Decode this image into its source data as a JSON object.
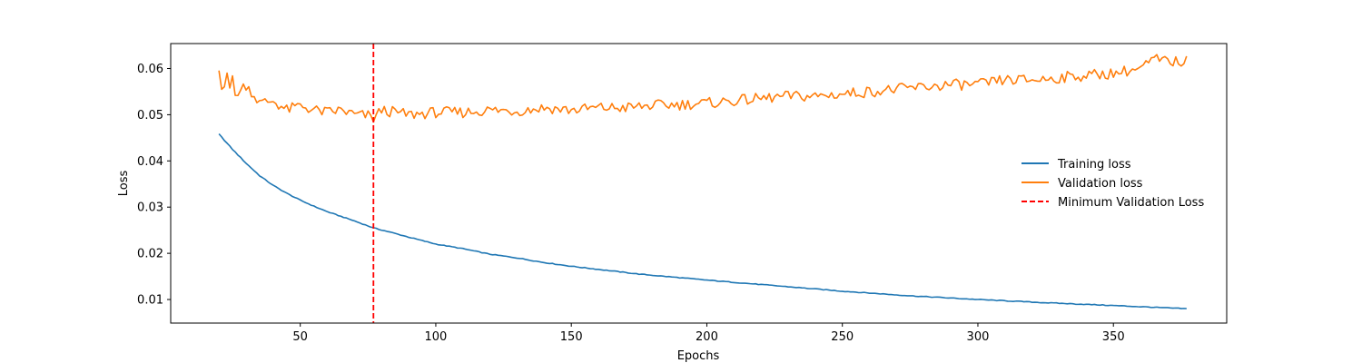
{
  "chart_data": {
    "type": "line",
    "title": "",
    "xlabel": "Epochs",
    "ylabel": "Loss",
    "xlim": [
      2.2,
      391.8
    ],
    "ylim": [
      0.0049,
      0.0654
    ],
    "xticks": [
      50,
      100,
      150,
      200,
      250,
      300,
      350
    ],
    "xtick_labels": [
      "50",
      "100",
      "150",
      "200",
      "250",
      "300",
      "350"
    ],
    "yticks": [
      0.01,
      0.02,
      0.03,
      0.04,
      0.05,
      0.06
    ],
    "ytick_labels": [
      "0.01",
      "0.02",
      "0.03",
      "0.04",
      "0.05",
      "0.06"
    ],
    "grid": false,
    "legend_position": "center-right",
    "series": [
      {
        "name": "Training loss",
        "color": "#1f77b4",
        "x_start": 20,
        "x_end": 377,
        "points": [
          [
            20,
            0.0458
          ],
          [
            25,
            0.0425
          ],
          [
            30,
            0.0395
          ],
          [
            35,
            0.0368
          ],
          [
            40,
            0.0347
          ],
          [
            45,
            0.033
          ],
          [
            50,
            0.0315
          ],
          [
            55,
            0.0302
          ],
          [
            60,
            0.029
          ],
          [
            65,
            0.028
          ],
          [
            70,
            0.027
          ],
          [
            77,
            0.0255
          ],
          [
            85,
            0.0243
          ],
          [
            90,
            0.0235
          ],
          [
            100,
            0.022
          ],
          [
            110,
            0.021
          ],
          [
            120,
            0.0198
          ],
          [
            130,
            0.019
          ],
          [
            140,
            0.018
          ],
          [
            150,
            0.0172
          ],
          [
            175,
            0.0155
          ],
          [
            200,
            0.0142
          ],
          [
            225,
            0.013
          ],
          [
            250,
            0.0118
          ],
          [
            275,
            0.0108
          ],
          [
            300,
            0.01
          ],
          [
            325,
            0.0093
          ],
          [
            350,
            0.0087
          ],
          [
            377,
            0.008
          ]
        ]
      },
      {
        "name": "Validation loss",
        "color": "#ff7f0e",
        "x_start": 20,
        "x_end": 377,
        "points": [
          [
            20,
            0.0595
          ],
          [
            21,
            0.0555
          ],
          [
            22,
            0.057
          ],
          [
            23,
            0.06
          ],
          [
            24,
            0.056
          ],
          [
            25,
            0.0575
          ],
          [
            26,
            0.054
          ],
          [
            27,
            0.055
          ],
          [
            28,
            0.0552
          ],
          [
            29,
            0.056
          ],
          [
            30,
            0.0565
          ],
          [
            32,
            0.055
          ],
          [
            35,
            0.0525
          ],
          [
            40,
            0.053
          ],
          [
            45,
            0.051
          ],
          [
            50,
            0.052
          ],
          [
            55,
            0.051
          ],
          [
            60,
            0.0505
          ],
          [
            65,
            0.051
          ],
          [
            70,
            0.05
          ],
          [
            75,
            0.0498
          ],
          [
            77,
            0.0492
          ],
          [
            80,
            0.051
          ],
          [
            85,
            0.0505
          ],
          [
            90,
            0.05
          ],
          [
            100,
            0.0505
          ],
          [
            110,
            0.0505
          ],
          [
            120,
            0.051
          ],
          [
            130,
            0.0508
          ],
          [
            140,
            0.0515
          ],
          [
            150,
            0.051
          ],
          [
            160,
            0.0515
          ],
          [
            170,
            0.0515
          ],
          [
            180,
            0.052
          ],
          [
            190,
            0.0522
          ],
          [
            200,
            0.0525
          ],
          [
            210,
            0.053
          ],
          [
            220,
            0.0535
          ],
          [
            230,
            0.054
          ],
          [
            240,
            0.054
          ],
          [
            250,
            0.0545
          ],
          [
            260,
            0.055
          ],
          [
            270,
            0.0555
          ],
          [
            280,
            0.056
          ],
          [
            290,
            0.0565
          ],
          [
            300,
            0.0565
          ],
          [
            310,
            0.0575
          ],
          [
            320,
            0.0575
          ],
          [
            330,
            0.058
          ],
          [
            340,
            0.0585
          ],
          [
            350,
            0.059
          ],
          [
            360,
            0.06
          ],
          [
            365,
            0.062
          ],
          [
            370,
            0.0615
          ],
          [
            377,
            0.0615
          ]
        ]
      }
    ],
    "vertical_lines": [
      {
        "name": "Minimum Validation Loss",
        "x": 77,
        "color": "#ff0000",
        "style": "dashed"
      }
    ]
  }
}
